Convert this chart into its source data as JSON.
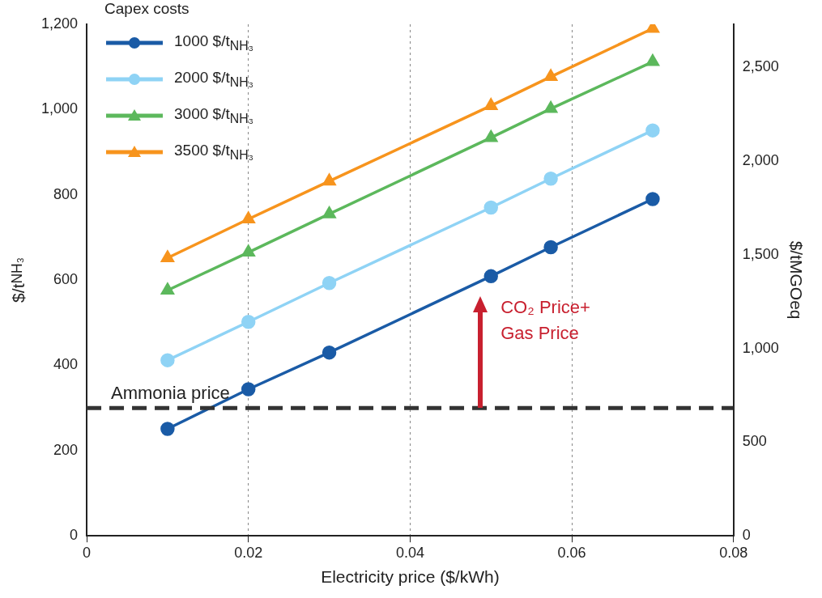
{
  "chart_data": {
    "type": "line",
    "xlabel": "Electricity price ($/kWh)",
    "ylabel": "$/t$_{NH₃}$",
    "y2label": "$/tMGOeq",
    "legend_title": "Capex costs",
    "x": [
      0.01,
      0.02,
      0.03,
      0.05,
      0.0574,
      0.07
    ],
    "series": [
      {
        "name": "1000 $/t$_{NH₃}$",
        "color": "#1a5ba6",
        "marker": "circle",
        "values": [
          251,
          344,
          430,
          609,
          677,
          790
        ]
      },
      {
        "name": "2000 $/t$_{NH₃}$",
        "color": "#8fd3f5",
        "marker": "circle",
        "values": [
          412,
          502,
          593,
          770,
          838,
          951
        ]
      },
      {
        "name": "3000 $/t$_{NH₃}$",
        "color": "#5cb85c",
        "marker": "triangle",
        "values": [
          576,
          665,
          755,
          934,
          1002,
          1112
        ]
      },
      {
        "name": "3500 $/t$_{NH₃}$",
        "color": "#f7941d",
        "marker": "triangle",
        "values": [
          652,
          743,
          832,
          1009,
          1077,
          1190
        ]
      }
    ],
    "xlim": [
      0,
      0.08
    ],
    "xticks": [
      0,
      0.02,
      0.04,
      0.06,
      0.08
    ],
    "ylim": [
      0,
      1200
    ],
    "yticks": [
      0,
      200,
      400,
      600,
      800,
      {
        "value": 1000,
        "label": "1,000"
      },
      {
        "value": 1200,
        "label": "1,200"
      }
    ],
    "y2lim": [
      0,
      2730
    ],
    "y2ticks": [
      0,
      500,
      {
        "value": 1000,
        "label": "1,000"
      },
      {
        "value": 1500,
        "label": "1,500"
      },
      {
        "value": 2000,
        "label": "2,000"
      },
      {
        "value": 2500,
        "label": "2,500"
      }
    ],
    "ref_lines": [
      {
        "axis": "y",
        "value": 300,
        "label": "Ammonia price",
        "color": "#333333",
        "line_style": "dashed"
      }
    ],
    "annotations": [
      "CO₂ Price+\nGas Price"
    ],
    "grid": "x",
    "legend": "top left"
  }
}
